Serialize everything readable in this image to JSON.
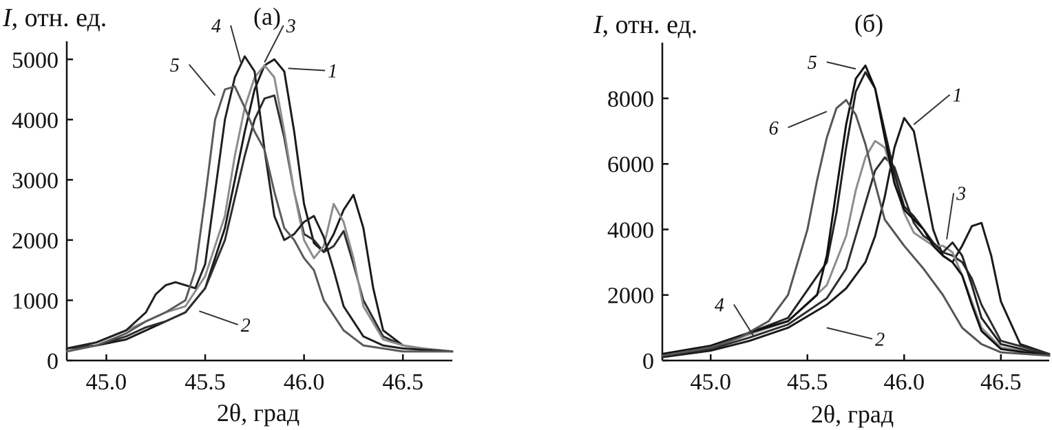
{
  "figure": {
    "ylabel_italic": "I",
    "ylabel_rest": ", отн. ед.",
    "xlabel": "2θ, град"
  },
  "chart_data": [
    {
      "type": "line",
      "panel_label": "(а)",
      "xlabel": "2θ, град",
      "ylabel": "I, отн. ед.",
      "xlim": [
        44.8,
        46.75
      ],
      "ylim": [
        0,
        5300
      ],
      "xticks": [
        45.0,
        45.5,
        46.0,
        46.5
      ],
      "yticks": [
        0,
        1000,
        2000,
        3000,
        4000,
        5000
      ],
      "grid": false,
      "series": [
        {
          "name": "1",
          "color": "#1a1a1a",
          "x": [
            44.8,
            44.95,
            45.1,
            45.2,
            45.3,
            45.4,
            45.5,
            45.6,
            45.65,
            45.7,
            45.75,
            45.8,
            45.85,
            45.9,
            45.95,
            46.0,
            46.05,
            46.1,
            46.15,
            46.2,
            46.25,
            46.3,
            46.35,
            46.4,
            46.5,
            46.6,
            46.75
          ],
          "y": [
            200,
            250,
            350,
            500,
            650,
            800,
            1200,
            2200,
            3000,
            3800,
            4500,
            4900,
            5000,
            4800,
            3800,
            2600,
            1950,
            1800,
            2100,
            2500,
            2750,
            2200,
            1200,
            500,
            250,
            200,
            150
          ]
        },
        {
          "name": "2",
          "color": "#2e2e2e",
          "x": [
            44.8,
            44.95,
            45.1,
            45.2,
            45.3,
            45.4,
            45.5,
            45.6,
            45.65,
            45.7,
            45.75,
            45.8,
            45.85,
            45.9,
            45.95,
            46.0,
            46.05,
            46.1,
            46.15,
            46.2,
            46.25,
            46.3,
            46.4,
            46.5,
            46.6,
            46.75
          ],
          "y": [
            200,
            250,
            400,
            550,
            650,
            800,
            1200,
            2000,
            2700,
            3400,
            4000,
            4350,
            4400,
            3700,
            2800,
            2100,
            2000,
            1800,
            1900,
            2150,
            1600,
            1000,
            400,
            250,
            200,
            150
          ]
        },
        {
          "name": "3",
          "color": "#8c8c8c",
          "x": [
            44.8,
            44.95,
            45.1,
            45.2,
            45.3,
            45.4,
            45.5,
            45.6,
            45.65,
            45.7,
            45.75,
            45.8,
            45.85,
            45.9,
            45.95,
            46.0,
            46.05,
            46.1,
            46.15,
            46.2,
            46.25,
            46.3,
            46.4,
            46.5,
            46.6,
            46.75
          ],
          "y": [
            200,
            300,
            500,
            650,
            800,
            900,
            1400,
            2400,
            3400,
            4200,
            4700,
            4900,
            4700,
            3800,
            2800,
            2000,
            1700,
            1900,
            2600,
            2300,
            1700,
            900,
            350,
            250,
            200,
            150
          ]
        },
        {
          "name": "4",
          "color": "#202020",
          "x": [
            44.8,
            44.95,
            45.1,
            45.2,
            45.25,
            45.3,
            45.35,
            45.4,
            45.45,
            45.5,
            45.55,
            45.6,
            45.65,
            45.7,
            45.75,
            45.8,
            45.85,
            45.9,
            45.95,
            46.0,
            46.05,
            46.1,
            46.15,
            46.2,
            46.3,
            46.4,
            46.5,
            46.75
          ],
          "y": [
            200,
            300,
            500,
            800,
            1100,
            1250,
            1300,
            1250,
            1200,
            1600,
            2800,
            4000,
            4700,
            5050,
            4800,
            3500,
            2400,
            2000,
            2100,
            2300,
            2400,
            2050,
            1500,
            900,
            400,
            250,
            200,
            150
          ]
        },
        {
          "name": "5",
          "color": "#5a5a5a",
          "x": [
            44.8,
            44.95,
            45.1,
            45.2,
            45.3,
            45.4,
            45.45,
            45.5,
            45.55,
            45.6,
            45.65,
            45.7,
            45.75,
            45.8,
            45.85,
            45.9,
            45.95,
            46.0,
            46.05,
            46.1,
            46.2,
            46.3,
            46.4,
            46.5,
            46.75
          ],
          "y": [
            150,
            250,
            450,
            650,
            800,
            1000,
            1500,
            2700,
            4000,
            4500,
            4550,
            4200,
            3800,
            3500,
            2800,
            2200,
            2000,
            1700,
            1500,
            1000,
            500,
            250,
            200,
            150,
            150
          ]
        }
      ]
    },
    {
      "type": "line",
      "panel_label": "(б)",
      "xlabel": "2θ, град",
      "ylabel": "I, отн. ед.",
      "xlim": [
        44.75,
        46.75
      ],
      "ylim": [
        0,
        9700
      ],
      "xticks": [
        45.0,
        45.5,
        46.0,
        46.5
      ],
      "yticks": [
        0,
        2000,
        4000,
        6000,
        8000
      ],
      "grid": false,
      "series": [
        {
          "name": "1",
          "color": "#1a1a1a",
          "x": [
            44.75,
            45.0,
            45.2,
            45.4,
            45.6,
            45.7,
            45.8,
            45.85,
            45.9,
            45.95,
            46.0,
            46.05,
            46.1,
            46.15,
            46.2,
            46.25,
            46.3,
            46.35,
            46.4,
            46.45,
            46.5,
            46.6,
            46.75
          ],
          "y": [
            100,
            300,
            600,
            1000,
            1700,
            2200,
            3000,
            3800,
            5000,
            6500,
            7400,
            7000,
            5500,
            4000,
            3200,
            3000,
            3500,
            4100,
            4200,
            3200,
            1800,
            500,
            200
          ]
        },
        {
          "name": "2",
          "color": "#2e2e2e",
          "x": [
            44.75,
            45.0,
            45.2,
            45.4,
            45.6,
            45.7,
            45.75,
            45.8,
            45.85,
            45.9,
            45.95,
            46.0,
            46.05,
            46.1,
            46.15,
            46.2,
            46.25,
            46.3,
            46.35,
            46.4,
            46.5,
            46.75
          ],
          "y": [
            150,
            350,
            700,
            1100,
            1900,
            2800,
            3800,
            4800,
            5800,
            6200,
            5900,
            5000,
            4200,
            3800,
            3600,
            3300,
            3200,
            3000,
            2500,
            1700,
            600,
            200
          ]
        },
        {
          "name": "3",
          "color": "#8c8c8c",
          "x": [
            44.75,
            45.0,
            45.2,
            45.4,
            45.6,
            45.7,
            45.75,
            45.8,
            45.85,
            45.9,
            45.95,
            46.0,
            46.05,
            46.1,
            46.15,
            46.2,
            46.25,
            46.3,
            46.35,
            46.4,
            46.5,
            46.75
          ],
          "y": [
            150,
            400,
            800,
            1200,
            2300,
            3800,
            5200,
            6200,
            6700,
            6500,
            5500,
            4500,
            3900,
            3700,
            3500,
            3500,
            3300,
            2600,
            1800,
            1000,
            400,
            150
          ]
        },
        {
          "name": "4",
          "color": "#222222",
          "x": [
            44.75,
            45.0,
            45.2,
            45.4,
            45.6,
            45.65,
            45.7,
            45.75,
            45.8,
            45.85,
            45.9,
            45.95,
            46.0,
            46.05,
            46.1,
            46.15,
            46.2,
            46.25,
            46.3,
            46.35,
            46.4,
            46.5,
            46.75
          ],
          "y": [
            200,
            450,
            850,
            1300,
            3000,
            4500,
            6500,
            8200,
            8800,
            8300,
            7000,
            5700,
            4700,
            4400,
            4000,
            3600,
            3300,
            3600,
            3200,
            2300,
            1300,
            500,
            150
          ]
        },
        {
          "name": "5",
          "color": "#101010",
          "x": [
            44.75,
            45.0,
            45.2,
            45.4,
            45.55,
            45.6,
            45.65,
            45.7,
            45.75,
            45.8,
            45.85,
            45.9,
            45.95,
            46.0,
            46.05,
            46.1,
            46.15,
            46.2,
            46.25,
            46.3,
            46.35,
            46.4,
            46.5,
            46.75
          ],
          "y": [
            200,
            450,
            850,
            1200,
            2000,
            3200,
            5200,
            7200,
            8600,
            9000,
            8300,
            6800,
            5400,
            4600,
            4300,
            4000,
            3500,
            3200,
            3000,
            2600,
            1700,
            900,
            350,
            150
          ]
        },
        {
          "name": "6",
          "color": "#555555",
          "x": [
            44.75,
            45.0,
            45.15,
            45.3,
            45.4,
            45.5,
            45.55,
            45.6,
            45.65,
            45.7,
            45.75,
            45.8,
            45.85,
            45.9,
            46.0,
            46.1,
            46.2,
            46.3,
            46.4,
            46.5,
            46.75
          ],
          "y": [
            150,
            400,
            700,
            1200,
            2000,
            4000,
            5500,
            6800,
            7700,
            7950,
            7500,
            6600,
            5400,
            4300,
            3500,
            2800,
            2000,
            1000,
            500,
            250,
            150
          ]
        }
      ]
    }
  ],
  "annotations": [
    [
      {
        "label": "5",
        "tx": 45.37,
        "ty": 4800,
        "ax": 45.55,
        "ay": 4400
      },
      {
        "label": "4",
        "tx": 45.58,
        "ty": 5450,
        "ax": 45.68,
        "ay": 4950
      },
      {
        "label": "3",
        "tx": 45.91,
        "ty": 5450,
        "ax": 45.8,
        "ay": 4950
      },
      {
        "label": "1",
        "tx": 46.12,
        "ty": 4700,
        "ax": 45.92,
        "ay": 4850
      },
      {
        "label": "2",
        "tx": 45.68,
        "ty": 480,
        "ax": 45.47,
        "ay": 820
      }
    ],
    [
      {
        "label": "5",
        "tx": 45.55,
        "ty": 8900,
        "ax": 45.75,
        "ay": 8900
      },
      {
        "label": "6",
        "tx": 45.35,
        "ty": 6900,
        "ax": 45.6,
        "ay": 7600
      },
      {
        "label": "1",
        "tx": 46.25,
        "ty": 7900,
        "ax": 46.05,
        "ay": 7200
      },
      {
        "label": "3",
        "tx": 46.27,
        "ty": 4900,
        "ax": 46.22,
        "ay": 3700
      },
      {
        "label": "4",
        "tx": 45.07,
        "ty": 1500,
        "ax": 45.22,
        "ay": 760
      },
      {
        "label": "2",
        "tx": 45.85,
        "ty": 450,
        "ax": 45.6,
        "ay": 1000
      }
    ]
  ]
}
